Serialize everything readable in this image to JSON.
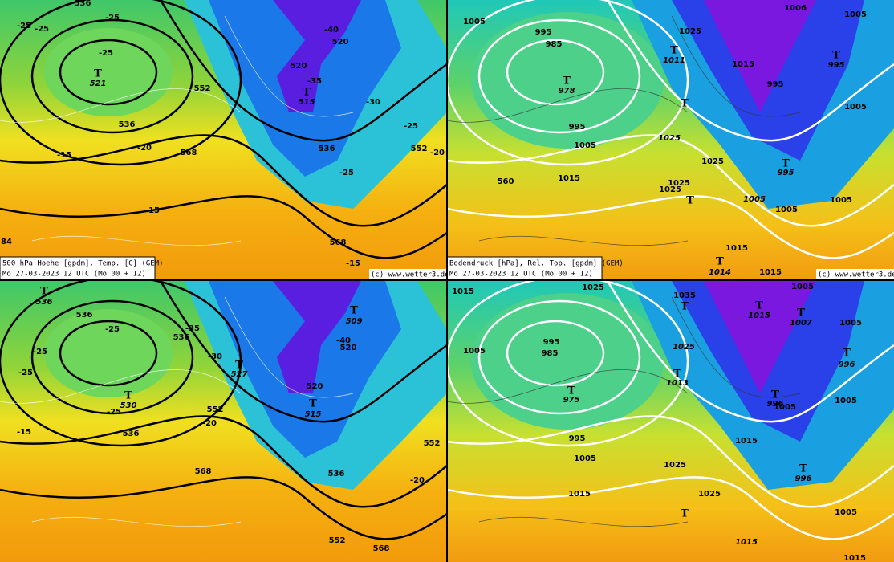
{
  "panels": [
    {
      "caption": [
        "500 hPa Hoehe [gpdm], Temp. [C] (GEM)",
        "Mo 27-03-2023 12 UTC (Mo 00 + 12)"
      ],
      "credit": "(c) www.wetter3.de",
      "labels": [
        "536",
        "-25",
        "-25",
        "-25",
        "-25",
        "T",
        "521",
        "552",
        "536",
        "-20",
        "-15",
        "568",
        "520",
        "-40",
        "520",
        "-35",
        "T",
        "515",
        "-30",
        "-25",
        "536",
        "552",
        "-20",
        "-25",
        "-15",
        "568",
        "84",
        "-15"
      ]
    },
    {
      "caption": [
        "Bodendruck [hPa], Rel. Top. [gpdm] (GEM)",
        "Mo 27-03-2023 12 UTC (Mo 00 + 12)"
      ],
      "credit": "(c) www.wetter3.de",
      "labels": [
        "1005",
        "995",
        "985",
        "T",
        "978",
        "995",
        "1005",
        "1015",
        "560",
        "1025",
        "T",
        "1011",
        "1015",
        "995",
        "T",
        "995",
        "1005",
        "1006",
        "1005",
        "T",
        "1025",
        "1025",
        "T",
        "995",
        "1025",
        "1025",
        "T",
        "1005",
        "1005",
        "1005",
        "1015",
        "T",
        "1014",
        "1015"
      ]
    },
    {
      "labels": [
        "T",
        "536",
        "536",
        "-25",
        "-35",
        "536",
        "-30",
        "T",
        "527",
        "T",
        "509",
        "-40",
        "520",
        "520",
        "T",
        "515",
        "T",
        "530",
        "-25",
        "552",
        "-20",
        "536",
        "-15",
        "568",
        "536",
        "-20",
        "552",
        "552",
        "568",
        "-25",
        "-25"
      ]
    },
    {
      "labels": [
        "1015",
        "1025",
        "1035",
        "T",
        "1025",
        "T",
        "1013",
        "995",
        "985",
        "1005",
        "T",
        "975",
        "995",
        "1005",
        "1015",
        "T",
        "1015",
        "T",
        "1007",
        "1005",
        "1005",
        "T",
        "996",
        "T",
        "996",
        "1005",
        "1005",
        "1015",
        "1025",
        "1025",
        "T",
        "996",
        "1005",
        "T",
        "1015",
        "1015"
      ]
    }
  ]
}
